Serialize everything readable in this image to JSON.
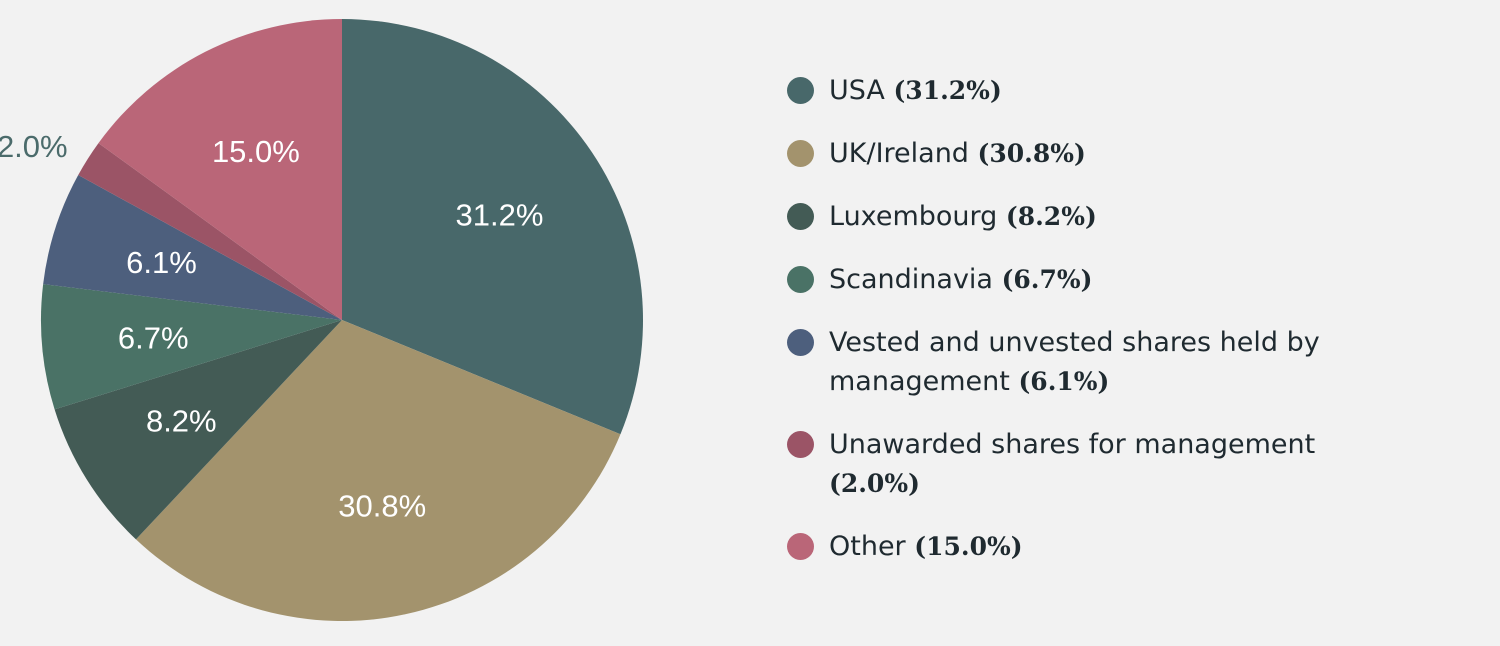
{
  "colors": {
    "background": "#f2f2f2",
    "outside_label": "#4b6b6b"
  },
  "chart_data": {
    "type": "pie",
    "start_angle_deg": 0,
    "direction": "clockwise",
    "slices": [
      {
        "name": "USA",
        "value": 31.2,
        "label": "31.2%",
        "legend_pct": "(31.2%)",
        "color": "#48686a",
        "label_position": "inside"
      },
      {
        "name": "UK/Ireland",
        "value": 30.8,
        "label": "30.8%",
        "legend_pct": "(30.8%)",
        "color": "#a3936d",
        "label_position": "inside"
      },
      {
        "name": "Luxembourg",
        "value": 8.2,
        "label": "8.2%",
        "legend_pct": "(8.2%)",
        "color": "#435b55",
        "label_position": "inside"
      },
      {
        "name": "Scandinavia",
        "value": 6.7,
        "label": "6.7%",
        "legend_pct": "(6.7%)",
        "color": "#4a7266",
        "label_position": "inside"
      },
      {
        "name": "Vested and unvested shares held by management",
        "value": 6.1,
        "label": "6.1%",
        "legend_pct": "(6.1%)",
        "color": "#4d5f7d",
        "label_position": "inside"
      },
      {
        "name": "Unawarded shares for management",
        "value": 2.0,
        "label": "2.0%",
        "legend_pct": "(2.0%)",
        "color": "#9b5466",
        "label_position": "outside"
      },
      {
        "name": "Other",
        "value": 15.0,
        "label": "15.0%",
        "legend_pct": "(15.0%)",
        "color": "#ba6678",
        "label_position": "inside"
      }
    ],
    "legend_placement": "right"
  }
}
